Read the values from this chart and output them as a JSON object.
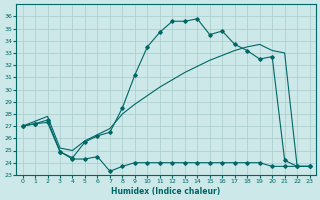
{
  "xlabel": "Humidex (Indice chaleur)",
  "bg_color": "#cce8e8",
  "grid_color": "#aacccc",
  "line_color": "#006666",
  "xlim": [
    -0.5,
    23.5
  ],
  "ylim": [
    23,
    37
  ],
  "yticks": [
    23,
    24,
    25,
    26,
    27,
    28,
    29,
    30,
    31,
    32,
    33,
    34,
    35,
    36
  ],
  "xticks": [
    0,
    1,
    2,
    3,
    4,
    5,
    6,
    7,
    8,
    9,
    10,
    11,
    12,
    13,
    14,
    15,
    16,
    17,
    18,
    19,
    20,
    21,
    22,
    23
  ],
  "x": [
    0,
    1,
    2,
    3,
    4,
    5,
    6,
    7,
    8,
    9,
    10,
    11,
    12,
    13,
    14,
    15,
    16,
    17,
    18,
    19,
    20,
    21,
    22,
    23
  ],
  "y_low": [
    27.0,
    27.2,
    27.3,
    24.9,
    24.3,
    24.3,
    24.5,
    23.3,
    23.7,
    24.0,
    24.0,
    24.0,
    24.0,
    24.0,
    24.0,
    24.0,
    24.0,
    24.0,
    24.0,
    24.0,
    23.7,
    23.7,
    23.7,
    23.7
  ],
  "y_high": [
    27.0,
    27.2,
    27.5,
    24.9,
    24.4,
    25.7,
    26.2,
    26.5,
    28.5,
    31.2,
    33.5,
    34.7,
    35.6,
    35.6,
    35.8,
    34.5,
    34.8,
    33.7,
    33.2,
    32.5,
    32.7,
    24.2,
    23.7,
    23.7
  ],
  "y_diag": [
    27.0,
    27.4,
    27.8,
    25.2,
    25.0,
    25.8,
    26.3,
    26.8,
    28.0,
    28.8,
    29.5,
    30.2,
    30.8,
    31.4,
    31.9,
    32.4,
    32.8,
    33.2,
    33.5,
    33.7,
    33.2,
    33.0,
    23.7,
    23.7
  ]
}
